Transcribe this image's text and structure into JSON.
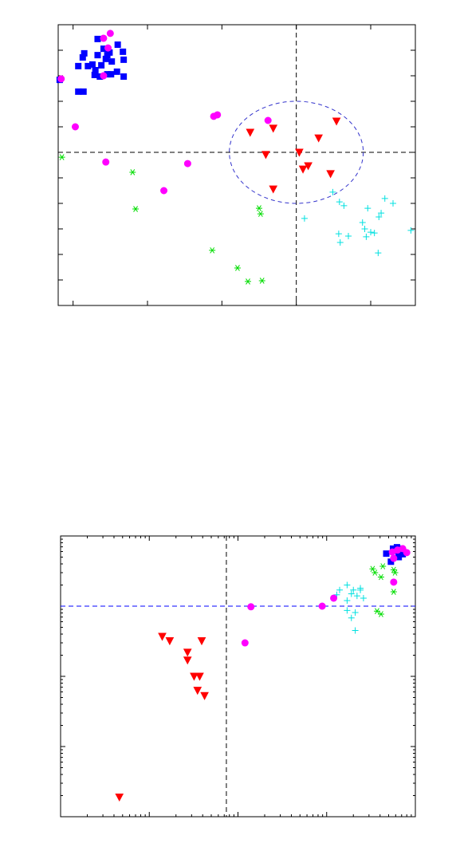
{
  "chart_data": [
    {
      "type": "scatter",
      "xlim": [
        -3.2,
        1.6
      ],
      "ylim": [
        -6,
        5
      ],
      "xticks": [
        -3,
        -2,
        -1,
        0,
        1
      ],
      "yticks": [
        -5,
        -4,
        -3,
        -2,
        -1,
        0,
        1,
        2,
        3,
        4
      ],
      "ref_lines": [
        {
          "axis": "x",
          "value": 0,
          "color": "#000000"
        },
        {
          "axis": "y",
          "value": 0,
          "color": "#000000"
        }
      ],
      "ellipse": {
        "cx": 0,
        "cy": 0,
        "rx": 0.9,
        "ry": 2,
        "color": "#3333cc"
      },
      "series": [
        {
          "marker": "square",
          "color": "#0000ff",
          "x": [
            -2.67,
            -2.59,
            -2.85,
            -2.87,
            -2.4,
            -2.51,
            -2.33,
            -2.67,
            -2.54,
            -2.56,
            -2.48,
            -2.74,
            -2.62,
            -2.32,
            -2.8,
            -2.93,
            -2.7,
            -2.41,
            -2.54,
            -2.71,
            -2.64,
            -2.49,
            -2.32,
            -2.93,
            -2.86,
            -3.18
          ],
          "values": [
            4.44,
            4.06,
            3.88,
            3.72,
            4.22,
            3.91,
            3.94,
            3.81,
            3.81,
            3.66,
            3.56,
            3.44,
            3.41,
            3.63,
            3.38,
            3.38,
            3.22,
            3.16,
            3.06,
            3.03,
            2.97,
            3.06,
            2.97,
            2.38,
            2.38,
            2.84
          ]
        },
        {
          "marker": "circle",
          "color": "#ff00ff",
          "x": [
            -2.5,
            -2.59,
            -2.53,
            -2.59,
            -3.16,
            -2.97,
            -2.56,
            -1.78,
            -1.46,
            -1.11,
            -1.06,
            -0.38
          ],
          "values": [
            4.66,
            4.47,
            4.09,
            3.0,
            2.88,
            1.0,
            -0.38,
            -1.5,
            -0.44,
            1.41,
            1.47,
            1.25
          ]
        },
        {
          "marker": "triangle-down",
          "color": "#ff0000",
          "x": [
            0.54,
            -0.62,
            -0.31,
            0.3,
            0.04,
            -0.41,
            0.16,
            0.09,
            0.46,
            -0.31
          ],
          "values": [
            1.22,
            0.78,
            0.94,
            0.56,
            0,
            -0.09,
            -0.53,
            -0.66,
            -0.84,
            -1.44
          ]
        },
        {
          "marker": "asterisk",
          "color": "#00dd00",
          "x": [
            -3.15,
            -2.2,
            -2.16,
            -0.5,
            -0.48,
            -1.13,
            -0.79,
            -0.65,
            -0.46
          ],
          "values": [
            -0.19,
            -0.78,
            -2.22,
            -2.19,
            -2.41,
            -3.84,
            -4.53,
            -5.06,
            -5.03
          ]
        },
        {
          "marker": "plus",
          "color": "#00e0e0",
          "x": [
            0.49,
            0.58,
            0.64,
            0.11,
            1.19,
            1.3,
            0.96,
            1.14,
            1.11,
            0.89,
            0.57,
            0.7,
            0.59,
            0.92,
            1.0,
            1.05,
            0.94,
            1.54,
            1.1
          ],
          "values": [
            -1.56,
            -1.94,
            -2.09,
            -2.59,
            -1.81,
            -2.0,
            -2.19,
            -2.38,
            -2.53,
            -2.75,
            -3.19,
            -3.28,
            -3.53,
            -3.0,
            -3.13,
            -3.16,
            -3.31,
            -3.06,
            -3.94
          ]
        }
      ]
    },
    {
      "type": "scatter",
      "xscale": "log",
      "yscale": "log",
      "minor_ticks": true,
      "xlim": [
        0.01,
        100
      ],
      "ylim": [
        0.01,
        100
      ],
      "xticks": [
        0.1,
        1,
        10
      ],
      "yticks": [
        0.1,
        1,
        10
      ],
      "ref_lines": [
        {
          "axis": "x",
          "value": 0.74,
          "color": "#000000"
        },
        {
          "axis": "y",
          "value": 10,
          "color": "#0000ff"
        }
      ],
      "series": [
        {
          "marker": "triangle-down",
          "color": "#ff0000",
          "x": [
            0.14,
            0.17,
            0.27,
            0.27,
            0.39,
            0.32,
            0.37,
            0.35,
            0.42,
            0.046
          ],
          "values": [
            3.7,
            3.2,
            2.2,
            1.7,
            3.2,
            1.0,
            1.0,
            0.63,
            0.53,
            0.019
          ]
        },
        {
          "marker": "asterisk",
          "color": "#00dd00",
          "x": [
            33,
            35,
            41,
            43,
            57,
            57,
            37,
            41,
            59
          ],
          "values": [
            34,
            30,
            26,
            37,
            33,
            16,
            8.5,
            7.7,
            30
          ]
        },
        {
          "marker": "plus",
          "color": "#00e0e0",
          "x": [
            14,
            17,
            20,
            24,
            13,
            19,
            22,
            26,
            17,
            21,
            19,
            21,
            17,
            24
          ],
          "values": [
            17,
            20,
            17,
            17,
            14.5,
            15,
            14,
            13,
            8.7,
            8.1,
            6.8,
            4.5,
            12,
            18
          ]
        },
        {
          "marker": "square",
          "color": "#0000ff",
          "x": [
            47,
            53,
            60,
            65,
            69,
            62,
            72,
            56,
            65
          ],
          "values": [
            56,
            43,
            62,
            50,
            66,
            69,
            55,
            66,
            58
          ]
        },
        {
          "marker": "circle",
          "color": "#ff00ff",
          "x": [
            1.4,
            1.2,
            8.9,
            12,
            57,
            57,
            72,
            80,
            55,
            63
          ],
          "values": [
            9.8,
            3.0,
            10,
            13,
            22,
            48,
            66,
            58,
            59,
            63
          ]
        }
      ]
    }
  ]
}
